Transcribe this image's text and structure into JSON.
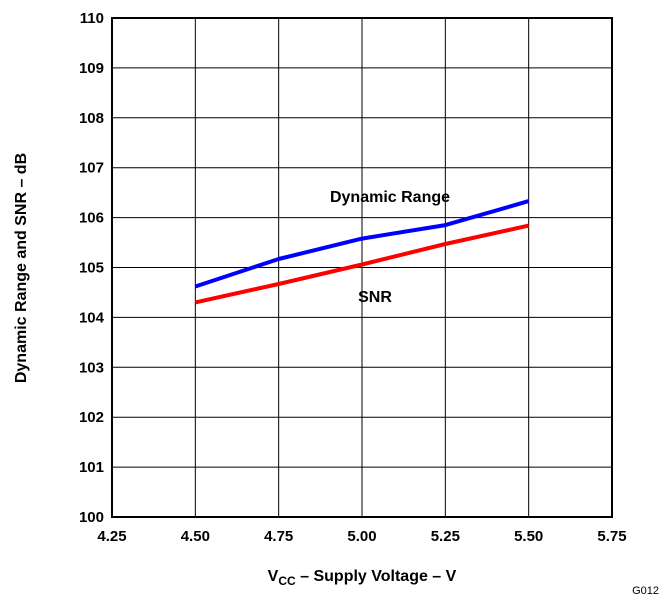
{
  "chart_data": {
    "type": "line",
    "xlabel_main": "V",
    "xlabel_sub": "CC",
    "xlabel_rest": " – Supply Voltage – V",
    "ylabel": "Dynamic Range and SNR – dB",
    "xlim": [
      4.25,
      5.75
    ],
    "ylim": [
      100,
      110
    ],
    "x_ticks": [
      "4.25",
      "4.50",
      "4.75",
      "5.00",
      "5.25",
      "5.50",
      "5.75"
    ],
    "y_ticks": [
      "100",
      "101",
      "102",
      "103",
      "104",
      "105",
      "106",
      "107",
      "108",
      "109",
      "110"
    ],
    "grid": true,
    "series": [
      {
        "name": "Dynamic Range",
        "color": "#0000ff",
        "x": [
          4.5,
          4.75,
          5.0,
          5.25,
          5.5
        ],
        "y": [
          104.62,
          105.17,
          105.58,
          105.85,
          106.33
        ]
      },
      {
        "name": "SNR",
        "color": "#ff0000",
        "x": [
          4.5,
          4.75,
          5.0,
          5.25,
          5.5
        ],
        "y": [
          104.3,
          104.67,
          105.06,
          105.47,
          105.84
        ]
      }
    ],
    "figure_id": "G012"
  }
}
